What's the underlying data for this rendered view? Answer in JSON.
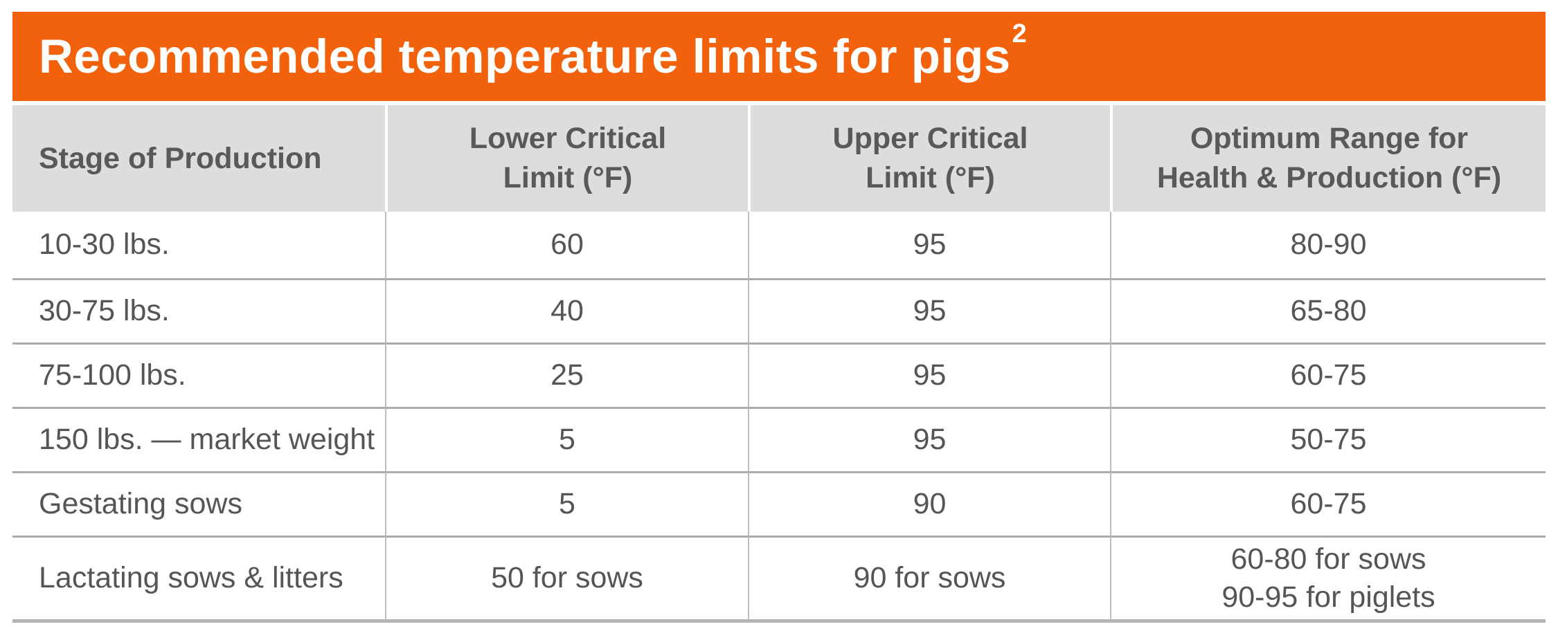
{
  "title": {
    "text": "Recommended temperature limits for pigs",
    "superscript": "2"
  },
  "table": {
    "headers": [
      "Stage of Production",
      "Lower Critical\nLimit (°F)",
      "Upper Critical\nLimit (°F)",
      "Optimum Range for\nHealth & Production (°F)"
    ],
    "rows": [
      {
        "stage": "10-30 lbs.",
        "lower": "60",
        "upper": "95",
        "optimum": "80-90"
      },
      {
        "stage": "30-75 lbs.",
        "lower": "40",
        "upper": "95",
        "optimum": "65-80"
      },
      {
        "stage": "75-100 lbs.",
        "lower": "25",
        "upper": "95",
        "optimum": "60-75"
      },
      {
        "stage": "150 lbs. — market weight",
        "lower": "5",
        "upper": "95",
        "optimum": "50-75"
      },
      {
        "stage": "Gestating sows",
        "lower": "5",
        "upper": "90",
        "optimum": "60-75"
      },
      {
        "stage": "Lactating sows & litters",
        "lower": "50 for sows",
        "upper": "90 for sows",
        "optimum": "60-80 for sows\n90-95 for piglets"
      }
    ]
  },
  "colors": {
    "accent_orange": "#F2610C",
    "title_text": "#FFFFFF",
    "header_background": "#DCDDDE",
    "header_text": "#58595B",
    "body_text": "#545557",
    "row_divider": "#ABABAB",
    "column_divider": "#BDBDBD",
    "bottom_border": "#B3B3B3"
  }
}
